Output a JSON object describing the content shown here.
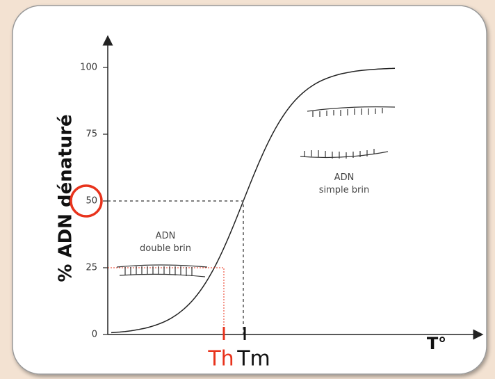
{
  "y_axis": {
    "label": "% ADN dénaturé",
    "ticks": [
      0,
      25,
      50,
      75,
      100
    ]
  },
  "x_axis": {
    "label": "T°"
  },
  "annotations": {
    "double_strand": [
      "ADN",
      "double brin"
    ],
    "single_strand": [
      "ADN",
      "simple brin"
    ],
    "th": "Th",
    "tm": "Tm"
  }
}
